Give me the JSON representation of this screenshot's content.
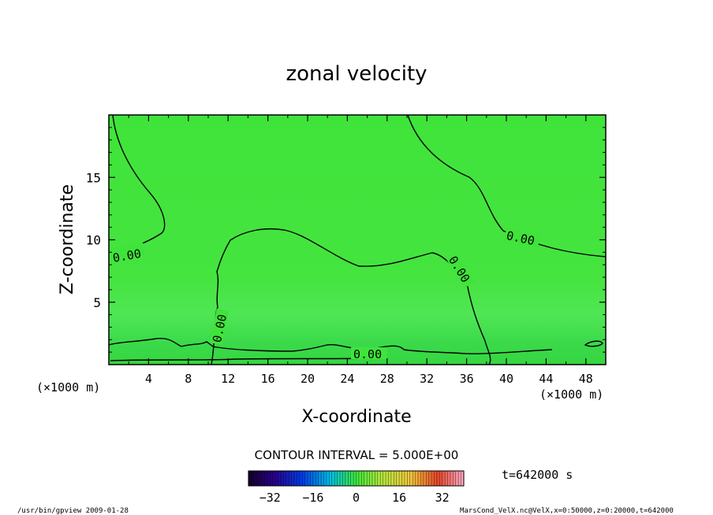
{
  "chart_data": {
    "type": "contour",
    "title": "zonal velocity",
    "xlabel": "X-coordinate",
    "ylabel": "Z-coordinate",
    "x_unit": "(×1000 m)",
    "y_unit": "(×1000 m)",
    "xlim": [
      0,
      50
    ],
    "ylim": [
      0,
      20
    ],
    "x_ticks": [
      4,
      8,
      12,
      16,
      20,
      24,
      28,
      32,
      36,
      40,
      44,
      48
    ],
    "y_ticks": [
      5,
      10,
      15
    ],
    "contour_labels": [
      "0.00",
      "0.00",
      "0.00",
      "0.00",
      "0.00"
    ],
    "contour_interval": "CONTOUR INTERVAL = 5.000E+00",
    "colorbar": {
      "ticks": [
        -32,
        -16,
        0,
        16,
        32
      ],
      "range": [
        -40,
        40
      ]
    },
    "time_label": "t=642000 s",
    "colors": {
      "field": "#3ee63a",
      "contour": "#000000"
    }
  },
  "footer": {
    "left": "/usr/bin/gpview  2009-01-28",
    "right": "MarsCond_VelX.nc@VelX,x=0:50000,z=0:20000,t=642000"
  }
}
